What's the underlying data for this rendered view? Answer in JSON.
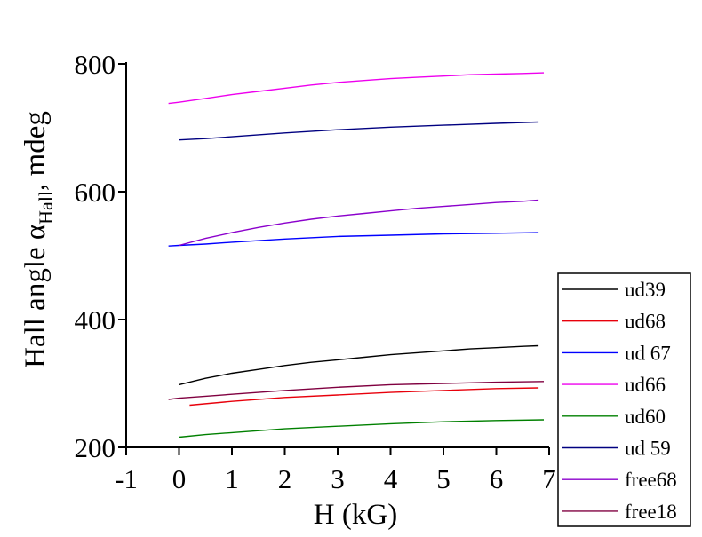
{
  "chart_data": {
    "type": "line",
    "xlabel": "H (kG)",
    "ylabel_main": "Hall angle α",
    "ylabel_sub": "Hall",
    "ylabel_tail": ", mdeg",
    "xlim": [
      -1,
      7
    ],
    "ylim": [
      200,
      800
    ],
    "xticks": [
      -1,
      0,
      1,
      2,
      3,
      4,
      5,
      6,
      7
    ],
    "yticks": [
      200,
      400,
      600,
      800
    ],
    "grid": false,
    "legend_position": "bottom-right",
    "series": [
      {
        "name": "ud39",
        "color": "#000000",
        "x": [
          0,
          0.5,
          1,
          1.5,
          2,
          2.5,
          3,
          3.5,
          4,
          4.5,
          5,
          5.5,
          6,
          6.5,
          6.8
        ],
        "y": [
          298,
          308,
          316,
          322,
          328,
          333,
          337,
          341,
          345,
          348,
          351,
          354,
          356,
          358,
          359
        ]
      },
      {
        "name": "ud68",
        "color": "#e8000b",
        "x": [
          0.2,
          1,
          2,
          3,
          4,
          5,
          6,
          6.8
        ],
        "y": [
          266,
          272,
          278,
          282,
          286,
          289,
          292,
          293
        ]
      },
      {
        "name": "ud 67",
        "color": "#0000ff",
        "x": [
          -0.2,
          0,
          0.5,
          1,
          2,
          3,
          4,
          5,
          6,
          6.8
        ],
        "y": [
          515,
          516,
          518,
          521,
          526,
          530,
          532,
          534,
          535,
          536
        ]
      },
      {
        "name": "ud66",
        "color": "#ee00ee",
        "x": [
          -0.2,
          0,
          0.5,
          1,
          1.5,
          2,
          2.5,
          3,
          3.5,
          4,
          4.5,
          5,
          5.5,
          6,
          6.5,
          6.9
        ],
        "y": [
          738,
          740,
          746,
          752,
          757,
          762,
          767,
          771,
          774,
          777,
          779,
          781,
          783,
          784,
          785,
          786
        ]
      },
      {
        "name": "ud60",
        "color": "#008000",
        "x": [
          0,
          0.5,
          1,
          2,
          3,
          4,
          5,
          6,
          6.9
        ],
        "y": [
          216,
          220,
          223,
          229,
          233,
          237,
          240,
          242,
          243
        ]
      },
      {
        "name": "ud 59",
        "color": "#000080",
        "x": [
          0,
          0.5,
          1,
          2,
          3,
          4,
          5,
          6,
          6.8
        ],
        "y": [
          681,
          683,
          686,
          692,
          697,
          701,
          704,
          707,
          709
        ]
      },
      {
        "name": "free68",
        "color": "#8b00cc",
        "x": [
          0,
          0.5,
          1,
          1.5,
          2,
          2.5,
          3,
          3.5,
          4,
          4.5,
          5,
          5.5,
          6,
          6.5,
          6.8
        ],
        "y": [
          516,
          527,
          536,
          544,
          551,
          557,
          562,
          566,
          570,
          574,
          577,
          580,
          583,
          585,
          587
        ]
      },
      {
        "name": "free18",
        "color": "#800040",
        "x": [
          -0.2,
          0,
          0.5,
          1,
          2,
          3,
          4,
          5,
          6,
          6.9
        ],
        "y": [
          275,
          277,
          280,
          283,
          289,
          294,
          298,
          300,
          302,
          303
        ]
      }
    ]
  }
}
